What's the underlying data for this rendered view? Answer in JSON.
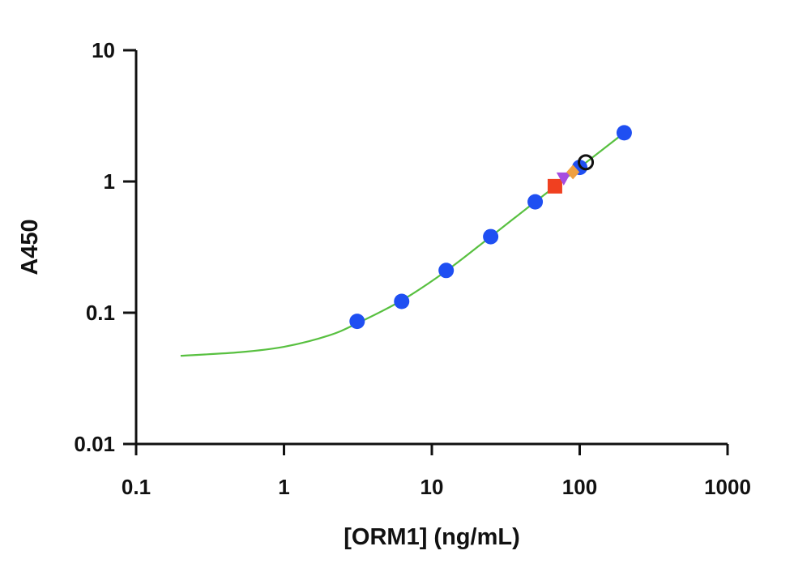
{
  "chart_data": {
    "type": "scatter",
    "title": "",
    "xlabel": "[ORM1] (ng/mL)",
    "ylabel": "A450",
    "x_scale": "log",
    "y_scale": "log",
    "xlim": [
      0.1,
      1000
    ],
    "ylim": [
      0.01,
      10
    ],
    "x_ticks": [
      0.1,
      1,
      10,
      100,
      1000
    ],
    "x_tick_labels": [
      "0.1",
      "1",
      "10",
      "100",
      "1000"
    ],
    "y_ticks": [
      0.01,
      0.1,
      1,
      10
    ],
    "y_tick_labels": [
      "0.01",
      "0.1",
      "1",
      "10"
    ],
    "grid": false,
    "series": [
      {
        "type": "scatter",
        "marker": "circle",
        "color": "#1f4ff2",
        "points": [
          {
            "x": 3.125,
            "y": 0.086
          },
          {
            "x": 6.25,
            "y": 0.122
          },
          {
            "x": 12.5,
            "y": 0.21
          },
          {
            "x": 25,
            "y": 0.38
          },
          {
            "x": 50,
            "y": 0.7
          },
          {
            "x": 100,
            "y": 1.28
          },
          {
            "x": 200,
            "y": 2.35
          }
        ]
      },
      {
        "type": "scatter",
        "marker": "square",
        "color": "#f04020",
        "points": [
          {
            "x": 68,
            "y": 0.92
          }
        ]
      },
      {
        "type": "scatter",
        "marker": "triangle-down",
        "color": "#a64ce0",
        "points": [
          {
            "x": 78,
            "y": 1.06
          }
        ]
      },
      {
        "type": "scatter",
        "marker": "diamond",
        "color": "#f0a040",
        "points": [
          {
            "x": 90,
            "y": 1.18
          }
        ]
      },
      {
        "type": "scatter",
        "marker": "open-circle",
        "color": "#111111",
        "points": [
          {
            "x": 110,
            "y": 1.4
          }
        ]
      },
      {
        "type": "line",
        "color": "#58c040",
        "points": [
          {
            "x": 0.2,
            "y": 0.047
          },
          {
            "x": 0.5,
            "y": 0.05
          },
          {
            "x": 1,
            "y": 0.055
          },
          {
            "x": 2,
            "y": 0.067
          },
          {
            "x": 3.125,
            "y": 0.083
          },
          {
            "x": 6.25,
            "y": 0.124
          },
          {
            "x": 12.5,
            "y": 0.208
          },
          {
            "x": 25,
            "y": 0.38
          },
          {
            "x": 50,
            "y": 0.7
          },
          {
            "x": 100,
            "y": 1.28
          },
          {
            "x": 200,
            "y": 2.35
          }
        ]
      }
    ]
  }
}
